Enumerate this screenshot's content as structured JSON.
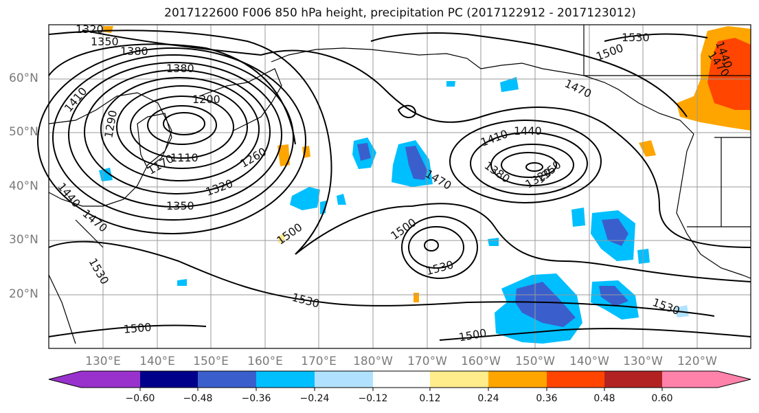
{
  "title": "2017122600 F006 850 hPa height, precipitation PC (2017122912 - 2017123012)",
  "map": {
    "lat_labels": [
      "60°N",
      "50°N",
      "40°N",
      "30°N",
      "20°N"
    ],
    "lon_labels": [
      "130°E",
      "140°E",
      "150°E",
      "160°E",
      "170°E",
      "180°W",
      "170°W",
      "160°W",
      "150°W",
      "140°W",
      "130°W",
      "120°W"
    ],
    "contour_labels": [
      "1320",
      "1350",
      "1380",
      "1410",
      "1380",
      "1290",
      "1200",
      "1110",
      "1170",
      "1260",
      "1320",
      "1350",
      "1440",
      "1470",
      "1530",
      "1500",
      "1530",
      "1500",
      "1470",
      "1500",
      "1530",
      "1500",
      "1410",
      "1440",
      "1380",
      "1320",
      "1350",
      "1470",
      "1530",
      "1500",
      "1530",
      "1440",
      "1470",
      "1530",
      "1500"
    ]
  },
  "colorbar": {
    "ticks": [
      "−0.60",
      "−0.48",
      "−0.36",
      "−0.24",
      "−0.12",
      "0.12",
      "0.24",
      "0.36",
      "0.48",
      "0.60"
    ],
    "colors": [
      "#9932cc",
      "#00008b",
      "#3a5fcd",
      "#00bfff",
      "#b0e2ff",
      "#ffffff",
      "#ffec8b",
      "#ffa500",
      "#ff4500",
      "#b22222",
      "#ff82ab"
    ]
  }
}
